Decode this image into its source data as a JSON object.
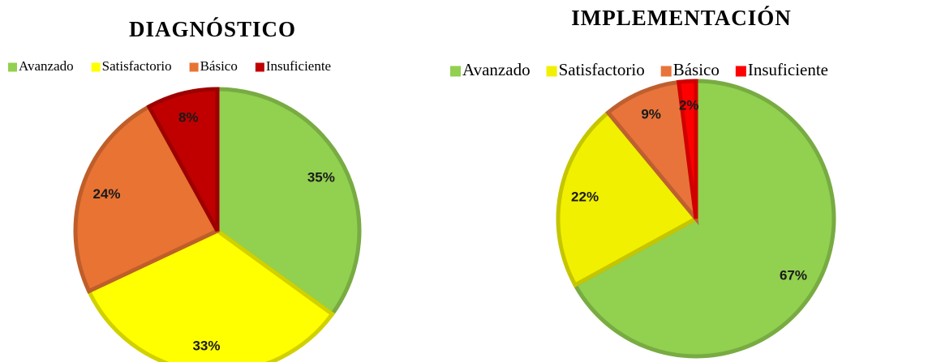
{
  "chart_data": [
    {
      "type": "pie",
      "title": "DIAGNÓSTICO",
      "categories": [
        "Avanzado",
        "Satisfactorio",
        "Básico",
        "Insuficiente"
      ],
      "values": [
        35,
        33,
        24,
        8
      ],
      "value_labels": [
        "35%",
        "33%",
        "24%",
        "8%"
      ],
      "colors": [
        "#92d050",
        "#ffff00",
        "#e87333",
        "#c00000"
      ],
      "legend": "top"
    },
    {
      "type": "pie",
      "title": "IMPLEMENTACIÓN",
      "categories": [
        "Avanzado",
        "Satisfactorio",
        "Básico",
        "Insuficiente"
      ],
      "values": [
        67,
        22,
        9,
        2
      ],
      "value_labels": [
        "67%",
        "22%",
        "9%",
        "2%"
      ],
      "colors": [
        "#92d050",
        "#f0f000",
        "#e8743b",
        "#ff0000"
      ],
      "legend": "top"
    }
  ]
}
